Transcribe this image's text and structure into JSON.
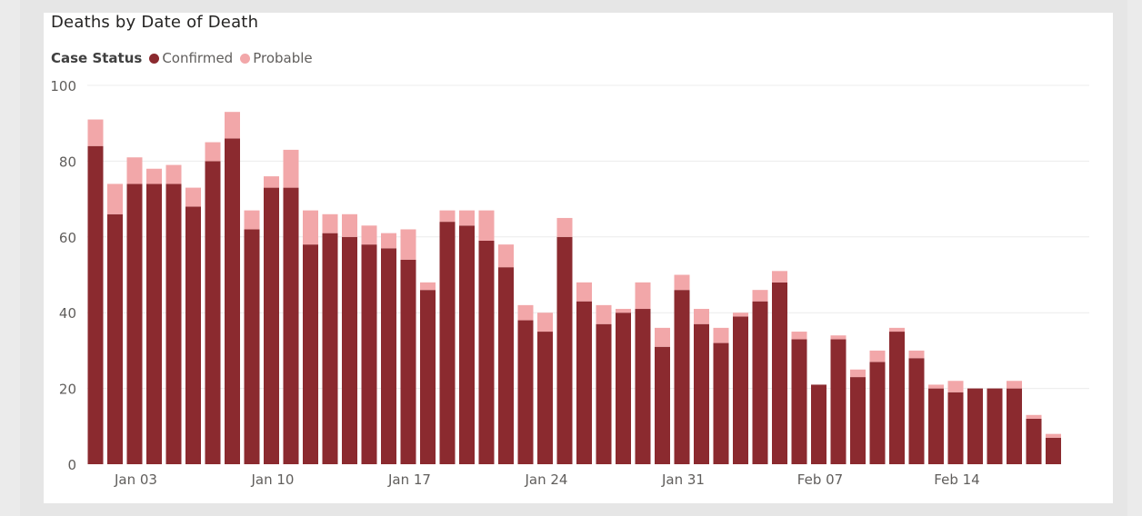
{
  "chart_data": {
    "type": "bar",
    "stacked": true,
    "title": "Deaths by Date of Death",
    "legend": {
      "heading": "Case Status",
      "position": "top-left"
    },
    "colors": {
      "Confirmed": "#8b2a2f",
      "Probable": "#f2a7a9"
    },
    "x_tick_labels": [
      "Jan 03",
      "Jan 10",
      "Jan 17",
      "Jan 24",
      "Jan 31",
      "Feb 07",
      "Feb 14"
    ],
    "x_tick_indices": [
      1,
      8,
      15,
      22,
      29,
      36,
      43
    ],
    "y_ticks": [
      0,
      20,
      40,
      60,
      80,
      100
    ],
    "ylim": [
      0,
      100
    ],
    "grid": true,
    "categories": [
      "Jan 02",
      "Jan 03",
      "Jan 04",
      "Jan 05",
      "Jan 06",
      "Jan 07",
      "Jan 08",
      "Jan 09",
      "Jan 10",
      "Jan 11",
      "Jan 12",
      "Jan 13",
      "Jan 14",
      "Jan 15",
      "Jan 16",
      "Jan 17",
      "Jan 18",
      "Jan 19",
      "Jan 20",
      "Jan 21",
      "Jan 22",
      "Jan 23",
      "Jan 24",
      "Jan 25",
      "Jan 26",
      "Jan 27",
      "Jan 28",
      "Jan 29",
      "Jan 30",
      "Jan 31",
      "Feb 01",
      "Feb 02",
      "Feb 03",
      "Feb 04",
      "Feb 05",
      "Feb 06",
      "Feb 07",
      "Feb 08",
      "Feb 09",
      "Feb 10",
      "Feb 11",
      "Feb 12",
      "Feb 13",
      "Feb 14",
      "Feb 15",
      "Feb 16",
      "Feb 17",
      "Feb 18",
      "Feb 19",
      "Feb 20"
    ],
    "series": [
      {
        "name": "Confirmed",
        "values": [
          84,
          66,
          74,
          74,
          74,
          68,
          80,
          86,
          62,
          73,
          73,
          58,
          61,
          60,
          58,
          57,
          54,
          46,
          64,
          63,
          59,
          52,
          38,
          35,
          60,
          43,
          37,
          40,
          41,
          31,
          46,
          37,
          32,
          39,
          43,
          48,
          33,
          21,
          33,
          23,
          27,
          35,
          28,
          20,
          19,
          20,
          20,
          20,
          12,
          7
        ]
      },
      {
        "name": "Probable",
        "values": [
          7,
          8,
          7,
          4,
          5,
          5,
          5,
          7,
          5,
          3,
          10,
          9,
          5,
          6,
          5,
          4,
          8,
          2,
          3,
          4,
          8,
          6,
          4,
          5,
          5,
          5,
          5,
          1,
          7,
          5,
          4,
          4,
          4,
          1,
          3,
          3,
          2,
          0,
          1,
          2,
          3,
          1,
          2,
          1,
          3,
          0,
          0,
          2,
          1,
          1
        ]
      }
    ]
  }
}
